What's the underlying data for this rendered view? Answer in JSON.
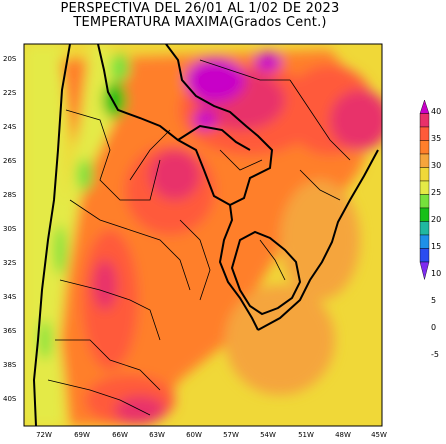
{
  "title": {
    "line1": "PERSPECTIVA DEL 26/01 AL 1/02 DE 2023",
    "line2": "TEMPERATURA MAXIMA(Grados Cent.)"
  },
  "axes": {
    "lat_labels": [
      "20S",
      "22S",
      "24S",
      "26S",
      "28S",
      "30S",
      "32S",
      "34S",
      "36S",
      "38S",
      "40S"
    ],
    "lon_labels": [
      "72W",
      "69W",
      "66W",
      "63W",
      "60W",
      "57W",
      "54W",
      "51W",
      "48W",
      "45W"
    ]
  },
  "colorbar": {
    "ticks": [
      "40",
      "35",
      "30",
      "25",
      "20",
      "15",
      "10",
      "5",
      "0",
      "-5"
    ],
    "colors": [
      "#c800c8",
      "#e8306a",
      "#ff5a3a",
      "#ff7f2a",
      "#f5a53c",
      "#f0d838",
      "#e4ea46",
      "#76e23c",
      "#16c018",
      "#20b8a0",
      "#1e90e8",
      "#2a4cf0",
      "#7e2cf0"
    ]
  },
  "map": {
    "region": "Sudamérica (20S-41S, 73W-45W)",
    "palette": {
      "ocean_sea": "#f0d838",
      "warm": "#f5a53c",
      "hot": "#ff7f2a",
      "very_hot": "#ff5a3a",
      "extreme": "#e8306a",
      "max": "#c800c8",
      "cool": "#e4ea46",
      "cold": "#76e23c",
      "colder": "#16c018"
    }
  }
}
